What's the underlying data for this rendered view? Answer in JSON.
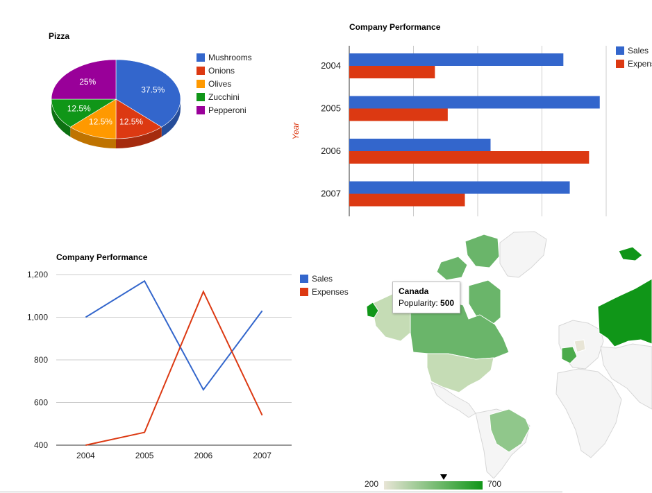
{
  "chart_data": [
    {
      "type": "pie",
      "title": "Pizza",
      "slices": [
        {
          "label": "Mushrooms",
          "value": 3,
          "percent_label": "37.5%",
          "color": "#3366cc",
          "side_color": "#264d99"
        },
        {
          "label": "Onions",
          "value": 1,
          "percent_label": "12.5%",
          "color": "#dc3912",
          "side_color": "#a52b0e"
        },
        {
          "label": "Olives",
          "value": 1,
          "percent_label": "12.5%",
          "color": "#ff9900",
          "side_color": "#bf7300"
        },
        {
          "label": "Zucchini",
          "value": 1,
          "percent_label": "12.5%",
          "color": "#109618",
          "side_color": "#0c7112"
        },
        {
          "label": "Pepperoni",
          "value": 2,
          "percent_label": "25%",
          "color": "#990099",
          "side_color": "#730073"
        }
      ],
      "is3D": true,
      "legend_position": "right"
    },
    {
      "type": "bar",
      "orientation": "horizontal",
      "title": "Company Performance",
      "xlabel": "",
      "ylabel": "Year",
      "categories": [
        "2004",
        "2005",
        "2006",
        "2007"
      ],
      "series": [
        {
          "name": "Sales",
          "color": "#3366cc",
          "values": [
            1000,
            1170,
            660,
            1030
          ]
        },
        {
          "name": "Expenses",
          "color": "#dc3912",
          "values": [
            400,
            460,
            1120,
            540
          ]
        }
      ],
      "xlim": [
        0,
        1200
      ],
      "grid": true,
      "legend_position": "right"
    },
    {
      "type": "line",
      "title": "Company Performance",
      "xlabel": "",
      "ylabel": "",
      "categories": [
        "2004",
        "2005",
        "2006",
        "2007"
      ],
      "series": [
        {
          "name": "Sales",
          "color": "#3366cc",
          "values": [
            1000,
            1170,
            660,
            1030
          ]
        },
        {
          "name": "Expenses",
          "color": "#dc3912",
          "values": [
            400,
            460,
            1120,
            540
          ]
        }
      ],
      "ylim": [
        400,
        1200
      ],
      "yticks": [
        "400",
        "600",
        "800",
        "1,000",
        "1,200"
      ],
      "grid": true,
      "legend_position": "right"
    },
    {
      "type": "geo",
      "title": "",
      "metric": "Popularity",
      "regions": [
        {
          "name": "Canada",
          "value": 500
        },
        {
          "name": "United States",
          "value": 300
        },
        {
          "name": "Brazil",
          "value": 400
        },
        {
          "name": "Russia",
          "value": 700
        },
        {
          "name": "France",
          "value": 600
        },
        {
          "name": "Germany",
          "value": 200
        }
      ],
      "color_axis": {
        "min_label": "200",
        "max_label": "700",
        "min_color": "#e8e5d6",
        "max_color": "#109618"
      },
      "tooltip": {
        "title": "Canada",
        "metric_label": "Popularity:",
        "value": "500"
      }
    }
  ],
  "colors": {
    "sales": "#3366cc",
    "expenses": "#dc3912",
    "grid": "#cccccc",
    "map_land": "#f5f5f5",
    "map_border": "#dddddd"
  }
}
